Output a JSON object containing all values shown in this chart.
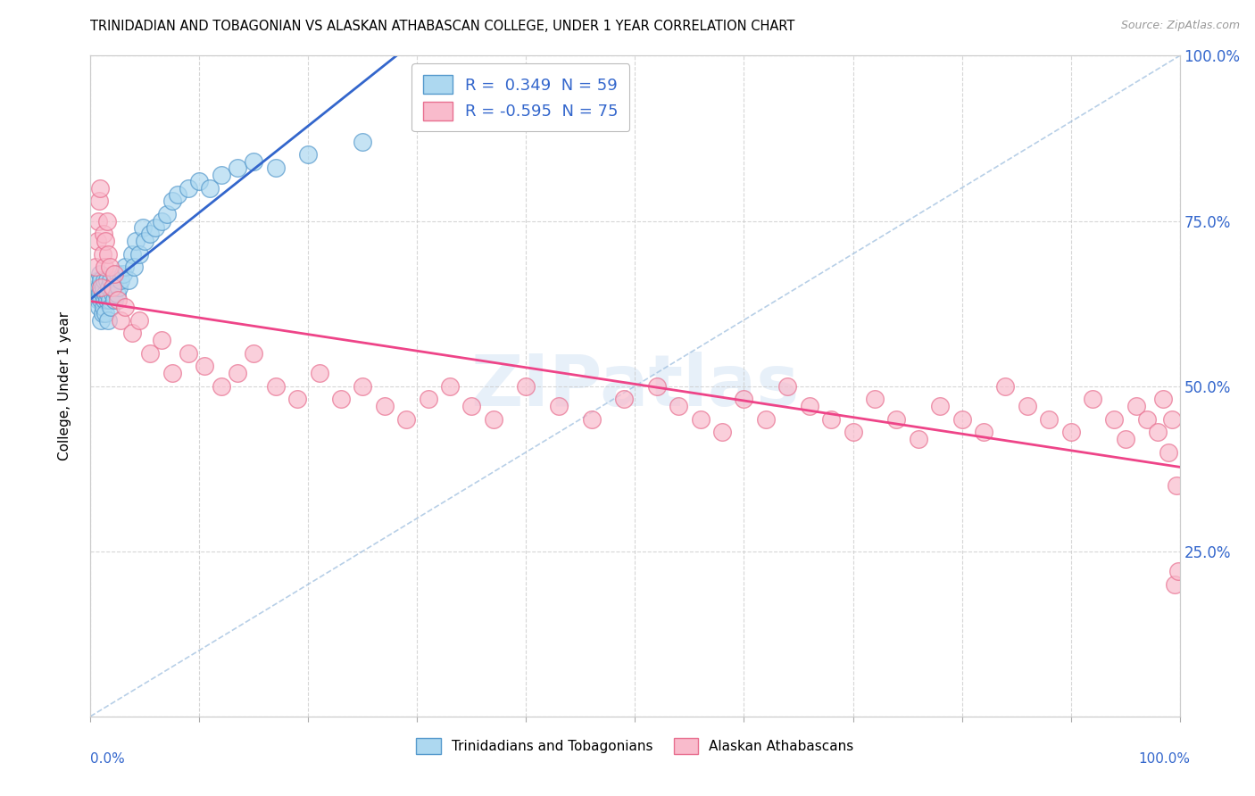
{
  "title": "TRINIDADIAN AND TOBAGONIAN VS ALASKAN ATHABASCAN COLLEGE, UNDER 1 YEAR CORRELATION CHART",
  "source": "Source: ZipAtlas.com",
  "ylabel": "College, Under 1 year",
  "xlim": [
    0.0,
    1.0
  ],
  "ylim": [
    0.0,
    1.0
  ],
  "color_blue_fill": "#ADD8F0",
  "color_blue_edge": "#5599CC",
  "color_pink_fill": "#F9BBCC",
  "color_pink_edge": "#E87090",
  "color_blue_line": "#3366CC",
  "color_pink_line": "#EE4488",
  "color_diag": "#99BBDD",
  "color_ytick": "#3366CC",
  "blue_x": [
    0.005,
    0.006,
    0.007,
    0.007,
    0.008,
    0.008,
    0.009,
    0.009,
    0.01,
    0.01,
    0.01,
    0.011,
    0.011,
    0.012,
    0.012,
    0.013,
    0.013,
    0.014,
    0.014,
    0.015,
    0.015,
    0.016,
    0.016,
    0.017,
    0.018,
    0.019,
    0.019,
    0.02,
    0.021,
    0.022,
    0.023,
    0.024,
    0.025,
    0.026,
    0.028,
    0.03,
    0.032,
    0.035,
    0.038,
    0.04,
    0.042,
    0.045,
    0.048,
    0.05,
    0.055,
    0.06,
    0.065,
    0.07,
    0.075,
    0.08,
    0.09,
    0.1,
    0.11,
    0.12,
    0.135,
    0.15,
    0.17,
    0.2,
    0.25
  ],
  "blue_y": [
    0.64,
    0.65,
    0.63,
    0.66,
    0.62,
    0.65,
    0.64,
    0.67,
    0.6,
    0.63,
    0.66,
    0.61,
    0.64,
    0.62,
    0.65,
    0.63,
    0.66,
    0.61,
    0.64,
    0.63,
    0.66,
    0.6,
    0.64,
    0.65,
    0.63,
    0.66,
    0.62,
    0.64,
    0.65,
    0.63,
    0.66,
    0.64,
    0.67,
    0.65,
    0.66,
    0.67,
    0.68,
    0.66,
    0.7,
    0.68,
    0.72,
    0.7,
    0.74,
    0.72,
    0.73,
    0.74,
    0.75,
    0.76,
    0.78,
    0.79,
    0.8,
    0.81,
    0.8,
    0.82,
    0.83,
    0.84,
    0.83,
    0.85,
    0.87
  ],
  "pink_x": [
    0.005,
    0.006,
    0.007,
    0.008,
    0.009,
    0.01,
    0.011,
    0.012,
    0.013,
    0.014,
    0.015,
    0.016,
    0.018,
    0.02,
    0.022,
    0.025,
    0.028,
    0.032,
    0.038,
    0.045,
    0.055,
    0.065,
    0.075,
    0.09,
    0.105,
    0.12,
    0.135,
    0.15,
    0.17,
    0.19,
    0.21,
    0.23,
    0.25,
    0.27,
    0.29,
    0.31,
    0.33,
    0.35,
    0.37,
    0.4,
    0.43,
    0.46,
    0.49,
    0.52,
    0.54,
    0.56,
    0.58,
    0.6,
    0.62,
    0.64,
    0.66,
    0.68,
    0.7,
    0.72,
    0.74,
    0.76,
    0.78,
    0.8,
    0.82,
    0.84,
    0.86,
    0.88,
    0.9,
    0.92,
    0.94,
    0.95,
    0.96,
    0.97,
    0.98,
    0.985,
    0.99,
    0.993,
    0.995,
    0.997,
    0.999
  ],
  "pink_y": [
    0.68,
    0.72,
    0.75,
    0.78,
    0.8,
    0.65,
    0.7,
    0.73,
    0.68,
    0.72,
    0.75,
    0.7,
    0.68,
    0.65,
    0.67,
    0.63,
    0.6,
    0.62,
    0.58,
    0.6,
    0.55,
    0.57,
    0.52,
    0.55,
    0.53,
    0.5,
    0.52,
    0.55,
    0.5,
    0.48,
    0.52,
    0.48,
    0.5,
    0.47,
    0.45,
    0.48,
    0.5,
    0.47,
    0.45,
    0.5,
    0.47,
    0.45,
    0.48,
    0.5,
    0.47,
    0.45,
    0.43,
    0.48,
    0.45,
    0.5,
    0.47,
    0.45,
    0.43,
    0.48,
    0.45,
    0.42,
    0.47,
    0.45,
    0.43,
    0.5,
    0.47,
    0.45,
    0.43,
    0.48,
    0.45,
    0.42,
    0.47,
    0.45,
    0.43,
    0.48,
    0.4,
    0.45,
    0.2,
    0.35,
    0.22
  ]
}
